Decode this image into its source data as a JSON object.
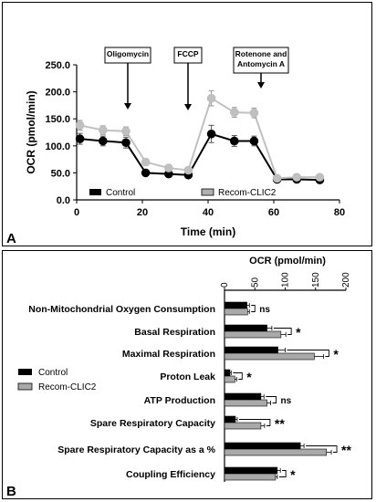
{
  "chart_data": [
    {
      "panel": "A",
      "type": "line",
      "xlabel": "Time (min)",
      "ylabel": "OCR (pmol/min)",
      "xlim": [
        0,
        80
      ],
      "ylim": [
        0,
        250
      ],
      "xticks": [
        "0",
        "20",
        "40",
        "60",
        "80"
      ],
      "yticks": [
        "0.0",
        "50.0",
        "100.0",
        "150.0",
        "200.0",
        "250.0"
      ],
      "legend_position": "bottom-left",
      "injections": [
        {
          "label": "Oligomycin",
          "x": 17
        },
        {
          "label": "FCCP",
          "x": 34
        },
        {
          "label": "Rotenone and Antomycin A",
          "x": 54
        }
      ],
      "series": [
        {
          "name": "Control",
          "color": "#000000",
          "x": [
            1,
            8,
            15,
            21,
            28,
            34,
            41,
            48,
            54,
            61,
            67,
            74
          ],
          "y": [
            113,
            109,
            106,
            50,
            48,
            46,
            122,
            109,
            109,
            38,
            38,
            37
          ],
          "err": [
            10,
            9,
            10,
            5,
            4,
            5,
            16,
            10,
            9,
            4,
            4,
            4
          ]
        },
        {
          "name": "Recom-CLIC2",
          "color": "#c0c0c0",
          "x": [
            1,
            8,
            15,
            21,
            28,
            34,
            41,
            48,
            54,
            61,
            67,
            74
          ],
          "y": [
            138,
            129,
            127,
            70,
            59,
            55,
            188,
            162,
            161,
            40,
            42,
            42
          ],
          "err": [
            9,
            8,
            8,
            6,
            5,
            4,
            14,
            9,
            9,
            4,
            4,
            4
          ]
        }
      ]
    },
    {
      "panel": "B",
      "type": "bar",
      "orientation": "horizontal",
      "title": "OCR (pmol/min)",
      "xlim": [
        0,
        200
      ],
      "xticks": [
        "0",
        "50",
        "100",
        "150",
        "200"
      ],
      "legend_position": "left",
      "categories": [
        "Non-Mitochondrial Oxygen Consumption",
        "Basal Respiration",
        "Maximal Respiration",
        "Proton Leak",
        "ATP Production",
        "Spare Respiratory Capacity",
        "Spare Respiratory Capacity as a %",
        "Coupling Efficiency"
      ],
      "series": [
        {
          "name": "Control",
          "color": "#000000",
          "values": [
            37,
            70,
            88,
            9,
            60,
            18,
            125,
            87
          ],
          "err": [
            4,
            8,
            12,
            2,
            5,
            3,
            6,
            5
          ]
        },
        {
          "name": "Recom-CLIC2",
          "color": "#a9a9a9",
          "values": [
            38,
            93,
            148,
            17,
            70,
            60,
            168,
            84
          ],
          "err": [
            3,
            8,
            15,
            3,
            6,
            6,
            8,
            3
          ]
        }
      ],
      "significance": [
        "ns",
        "*",
        "*",
        "*",
        "ns",
        "**",
        "**",
        "*"
      ]
    }
  ]
}
